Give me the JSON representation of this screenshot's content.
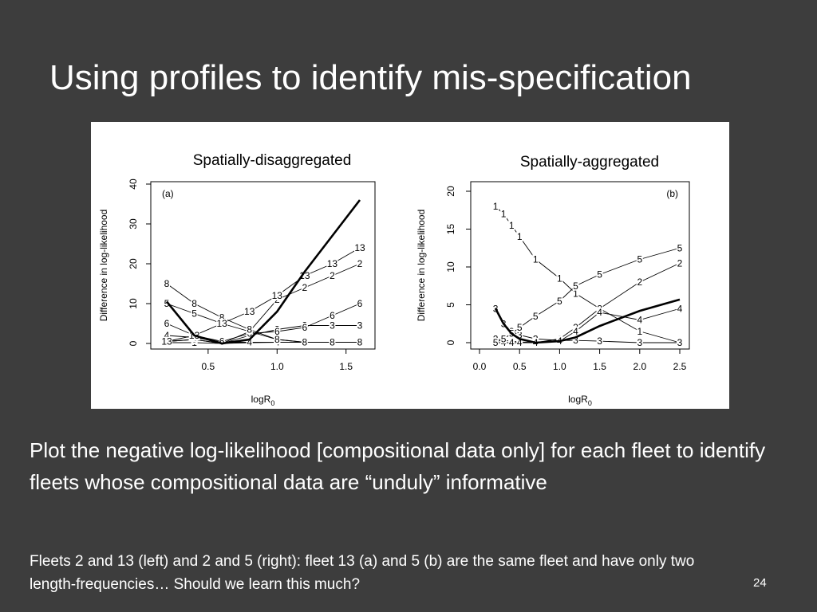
{
  "slide": {
    "title": "Using profiles to identify mis-specification",
    "body": "Plot the negative log-likelihood [compositional data only] for each fleet to identify fleets whose compositional data are “unduly” informative",
    "footnote": "Fleets 2 and 13 (left) and 2 and 5 (right): fleet 13 (a) and 5 (b) are the same fleet and have only two length-frequencies… Should we learn this much?",
    "page_number": "24"
  },
  "chart_data": [
    {
      "type": "line",
      "title": "Spatially-disaggregated",
      "panel_label": "(a)",
      "xlabel": "logR",
      "xlabel_sub": "0",
      "ylabel": "Difference in log-likelihood",
      "xlim": [
        0.2,
        1.6
      ],
      "ylim": [
        0,
        40
      ],
      "xticks": [
        0.5,
        1.0,
        1.5
      ],
      "xtick_labels": [
        "0.5",
        "1.0",
        "1.5"
      ],
      "yticks": [
        0,
        10,
        20,
        30,
        40
      ],
      "ytick_labels": [
        "0",
        "10",
        "20",
        "30",
        "40"
      ],
      "x": [
        0.2,
        0.4,
        0.6,
        0.8,
        1.0,
        1.2,
        1.4,
        1.6
      ],
      "total": [
        10.5,
        2.0,
        0.0,
        1.0,
        8.0,
        18.0,
        27.0,
        36.0
      ],
      "series": [
        {
          "name": "1",
          "values": [
            0.2,
            0.2,
            0.0,
            0.2,
            0.3,
            0.3,
            0.3,
            0.3
          ]
        },
        {
          "name": "2",
          "values": [
            0.5,
            1.0,
            0.0,
            3.0,
            11.0,
            14.0,
            17.0,
            20.0
          ]
        },
        {
          "name": "3",
          "values": [
            0.5,
            1.0,
            0.0,
            2.0,
            3.5,
            4.5,
            4.5,
            4.5
          ]
        },
        {
          "name": "4",
          "values": [
            2.0,
            1.5,
            0.3,
            0.3,
            0.3,
            0.3,
            0.3,
            0.3
          ]
        },
        {
          "name": "5",
          "values": [
            10.0,
            7.5,
            5.0,
            3.0,
            1.0,
            0.3,
            0.3,
            0.3
          ]
        },
        {
          "name": "6",
          "values": [
            5.0,
            2.0,
            0.5,
            2.5,
            3.0,
            4.0,
            7.0,
            10.0
          ]
        },
        {
          "name": "8",
          "values": [
            15.0,
            10.0,
            6.5,
            3.5,
            1.0,
            0.3,
            0.3,
            0.3
          ]
        },
        {
          "name": "13",
          "values": [
            0.5,
            2.0,
            5.0,
            8.0,
            12.0,
            17.0,
            20.0,
            24.0
          ]
        }
      ]
    },
    {
      "type": "line",
      "title": "Spatially-aggregated",
      "panel_label": "(b)",
      "xlabel": "logR",
      "xlabel_sub": "0",
      "ylabel": "Difference in log-likelihood",
      "xlim": [
        0.0,
        2.5
      ],
      "ylim": [
        0,
        20
      ],
      "xticks": [
        0.0,
        0.5,
        1.0,
        1.5,
        2.0,
        2.5
      ],
      "xtick_labels": [
        "0.0",
        "0.5",
        "1.0",
        "1.5",
        "2.0",
        "2.5"
      ],
      "yticks": [
        0,
        5,
        10,
        15,
        20
      ],
      "ytick_labels": [
        "0",
        "5",
        "10",
        "15",
        "20"
      ],
      "x": [
        0.2,
        0.3,
        0.4,
        0.5,
        0.7,
        1.0,
        1.2,
        1.5,
        2.0,
        2.5
      ],
      "total": [
        4.5,
        2.5,
        1.2,
        0.5,
        0.0,
        0.2,
        0.7,
        2.2,
        4.2,
        5.7
      ],
      "series": [
        {
          "name": "1",
          "values": [
            18.0,
            17.0,
            15.5,
            14.0,
            11.0,
            8.5,
            6.5,
            4.5,
            1.5,
            0.0
          ]
        },
        {
          "name": "2",
          "values": [
            0.5,
            0.3,
            0.2,
            0.1,
            0.0,
            0.5,
            2.0,
            4.5,
            8.0,
            10.5
          ]
        },
        {
          "name": "3",
          "values": [
            4.5,
            2.5,
            1.5,
            1.0,
            0.5,
            0.3,
            0.3,
            0.2,
            0.0,
            0.0
          ]
        },
        {
          "name": "4",
          "values": [
            0.0,
            0.0,
            0.0,
            0.0,
            0.0,
            0.2,
            1.5,
            4.0,
            3.0,
            4.5
          ]
        },
        {
          "name": "5",
          "values": [
            0.0,
            0.5,
            1.2,
            2.0,
            3.5,
            5.5,
            7.5,
            9.0,
            11.0,
            12.5
          ]
        }
      ]
    }
  ]
}
